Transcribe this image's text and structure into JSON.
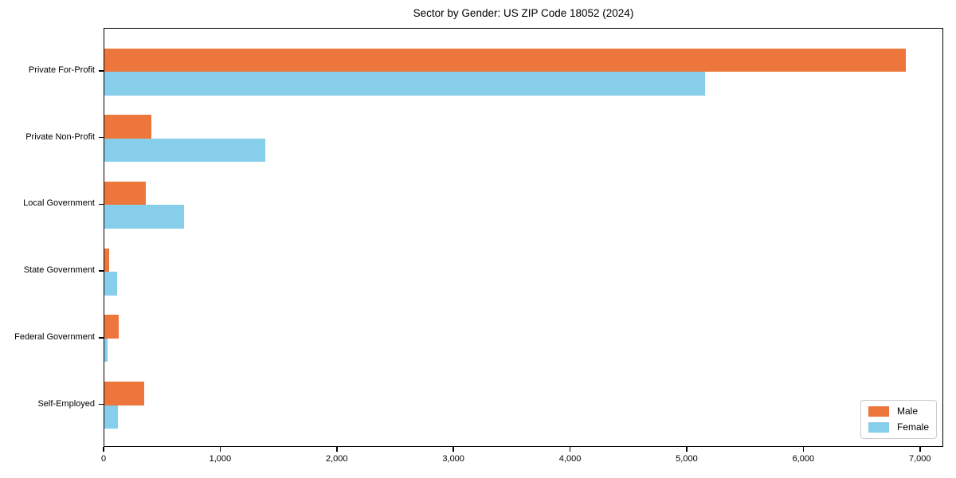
{
  "title": "Sector by Gender: US ZIP Code 18052 (2024)",
  "legend": {
    "male": "Male",
    "female": "Female"
  },
  "colors": {
    "male": "#ec763c",
    "female": "#87ceeb",
    "axis": "#000000",
    "legend_border": "#cccccc"
  },
  "chart_data": {
    "type": "bar",
    "orientation": "horizontal",
    "title": "Sector by Gender: US ZIP Code 18052 (2024)",
    "categories": [
      "Private For-Profit",
      "Private Non-Profit",
      "Local Government",
      "State Government",
      "Federal Government",
      "Self-Employed"
    ],
    "series": [
      {
        "name": "Male",
        "color": "#ec763c",
        "values": [
          6870,
          400,
          355,
          40,
          120,
          340
        ]
      },
      {
        "name": "Female",
        "color": "#87ceeb",
        "values": [
          5150,
          1380,
          680,
          110,
          30,
          115
        ]
      }
    ],
    "x_ticks": [
      {
        "value": 0,
        "label": "0"
      },
      {
        "value": 1000,
        "label": "1,000"
      },
      {
        "value": 2000,
        "label": "2,000"
      },
      {
        "value": 3000,
        "label": "3,000"
      },
      {
        "value": 4000,
        "label": "4,000"
      },
      {
        "value": 5000,
        "label": "5,000"
      },
      {
        "value": 6000,
        "label": "6,000"
      },
      {
        "value": 7000,
        "label": "7,000"
      },
      {
        "value": 7200,
        "label": ""
      }
    ],
    "xlim": [
      0,
      7200
    ],
    "xlabel": "",
    "ylabel": "",
    "grid": false,
    "legend_position": "lower right"
  }
}
